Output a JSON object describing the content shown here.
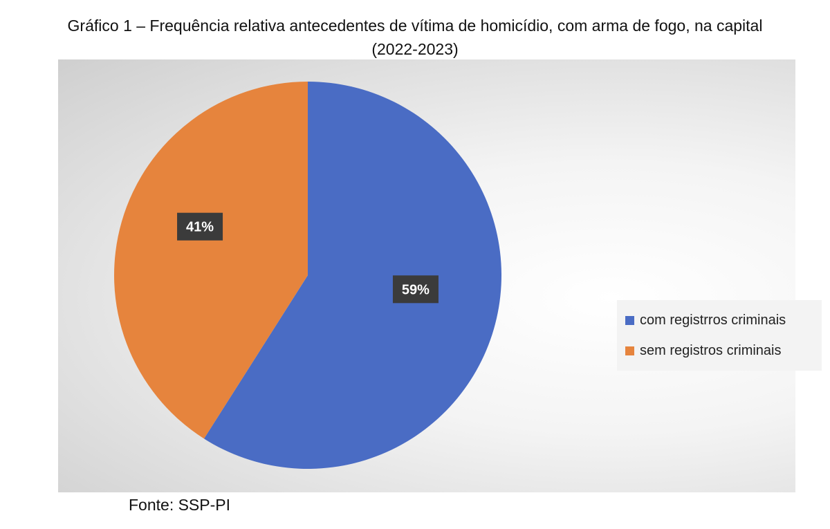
{
  "title": {
    "line1": "Gráfico 1 – Frequência relativa antecedentes de vítima de homicídio, com arma de fogo, na capital",
    "line2": "(2022-2023)"
  },
  "source": "Fonte: SSP-PI",
  "chart_data": {
    "type": "pie",
    "slices": [
      {
        "label": "com registrros criminais",
        "value": 59,
        "data_label": "59%",
        "color": "#4a6cc4"
      },
      {
        "label": "sem registros criminais",
        "value": 41,
        "data_label": "41%",
        "color": "#e6843d"
      }
    ],
    "legend_position": "right"
  },
  "colors": {
    "data_label_bg": "#3b3b3b",
    "data_label_text": "#ffffff"
  }
}
